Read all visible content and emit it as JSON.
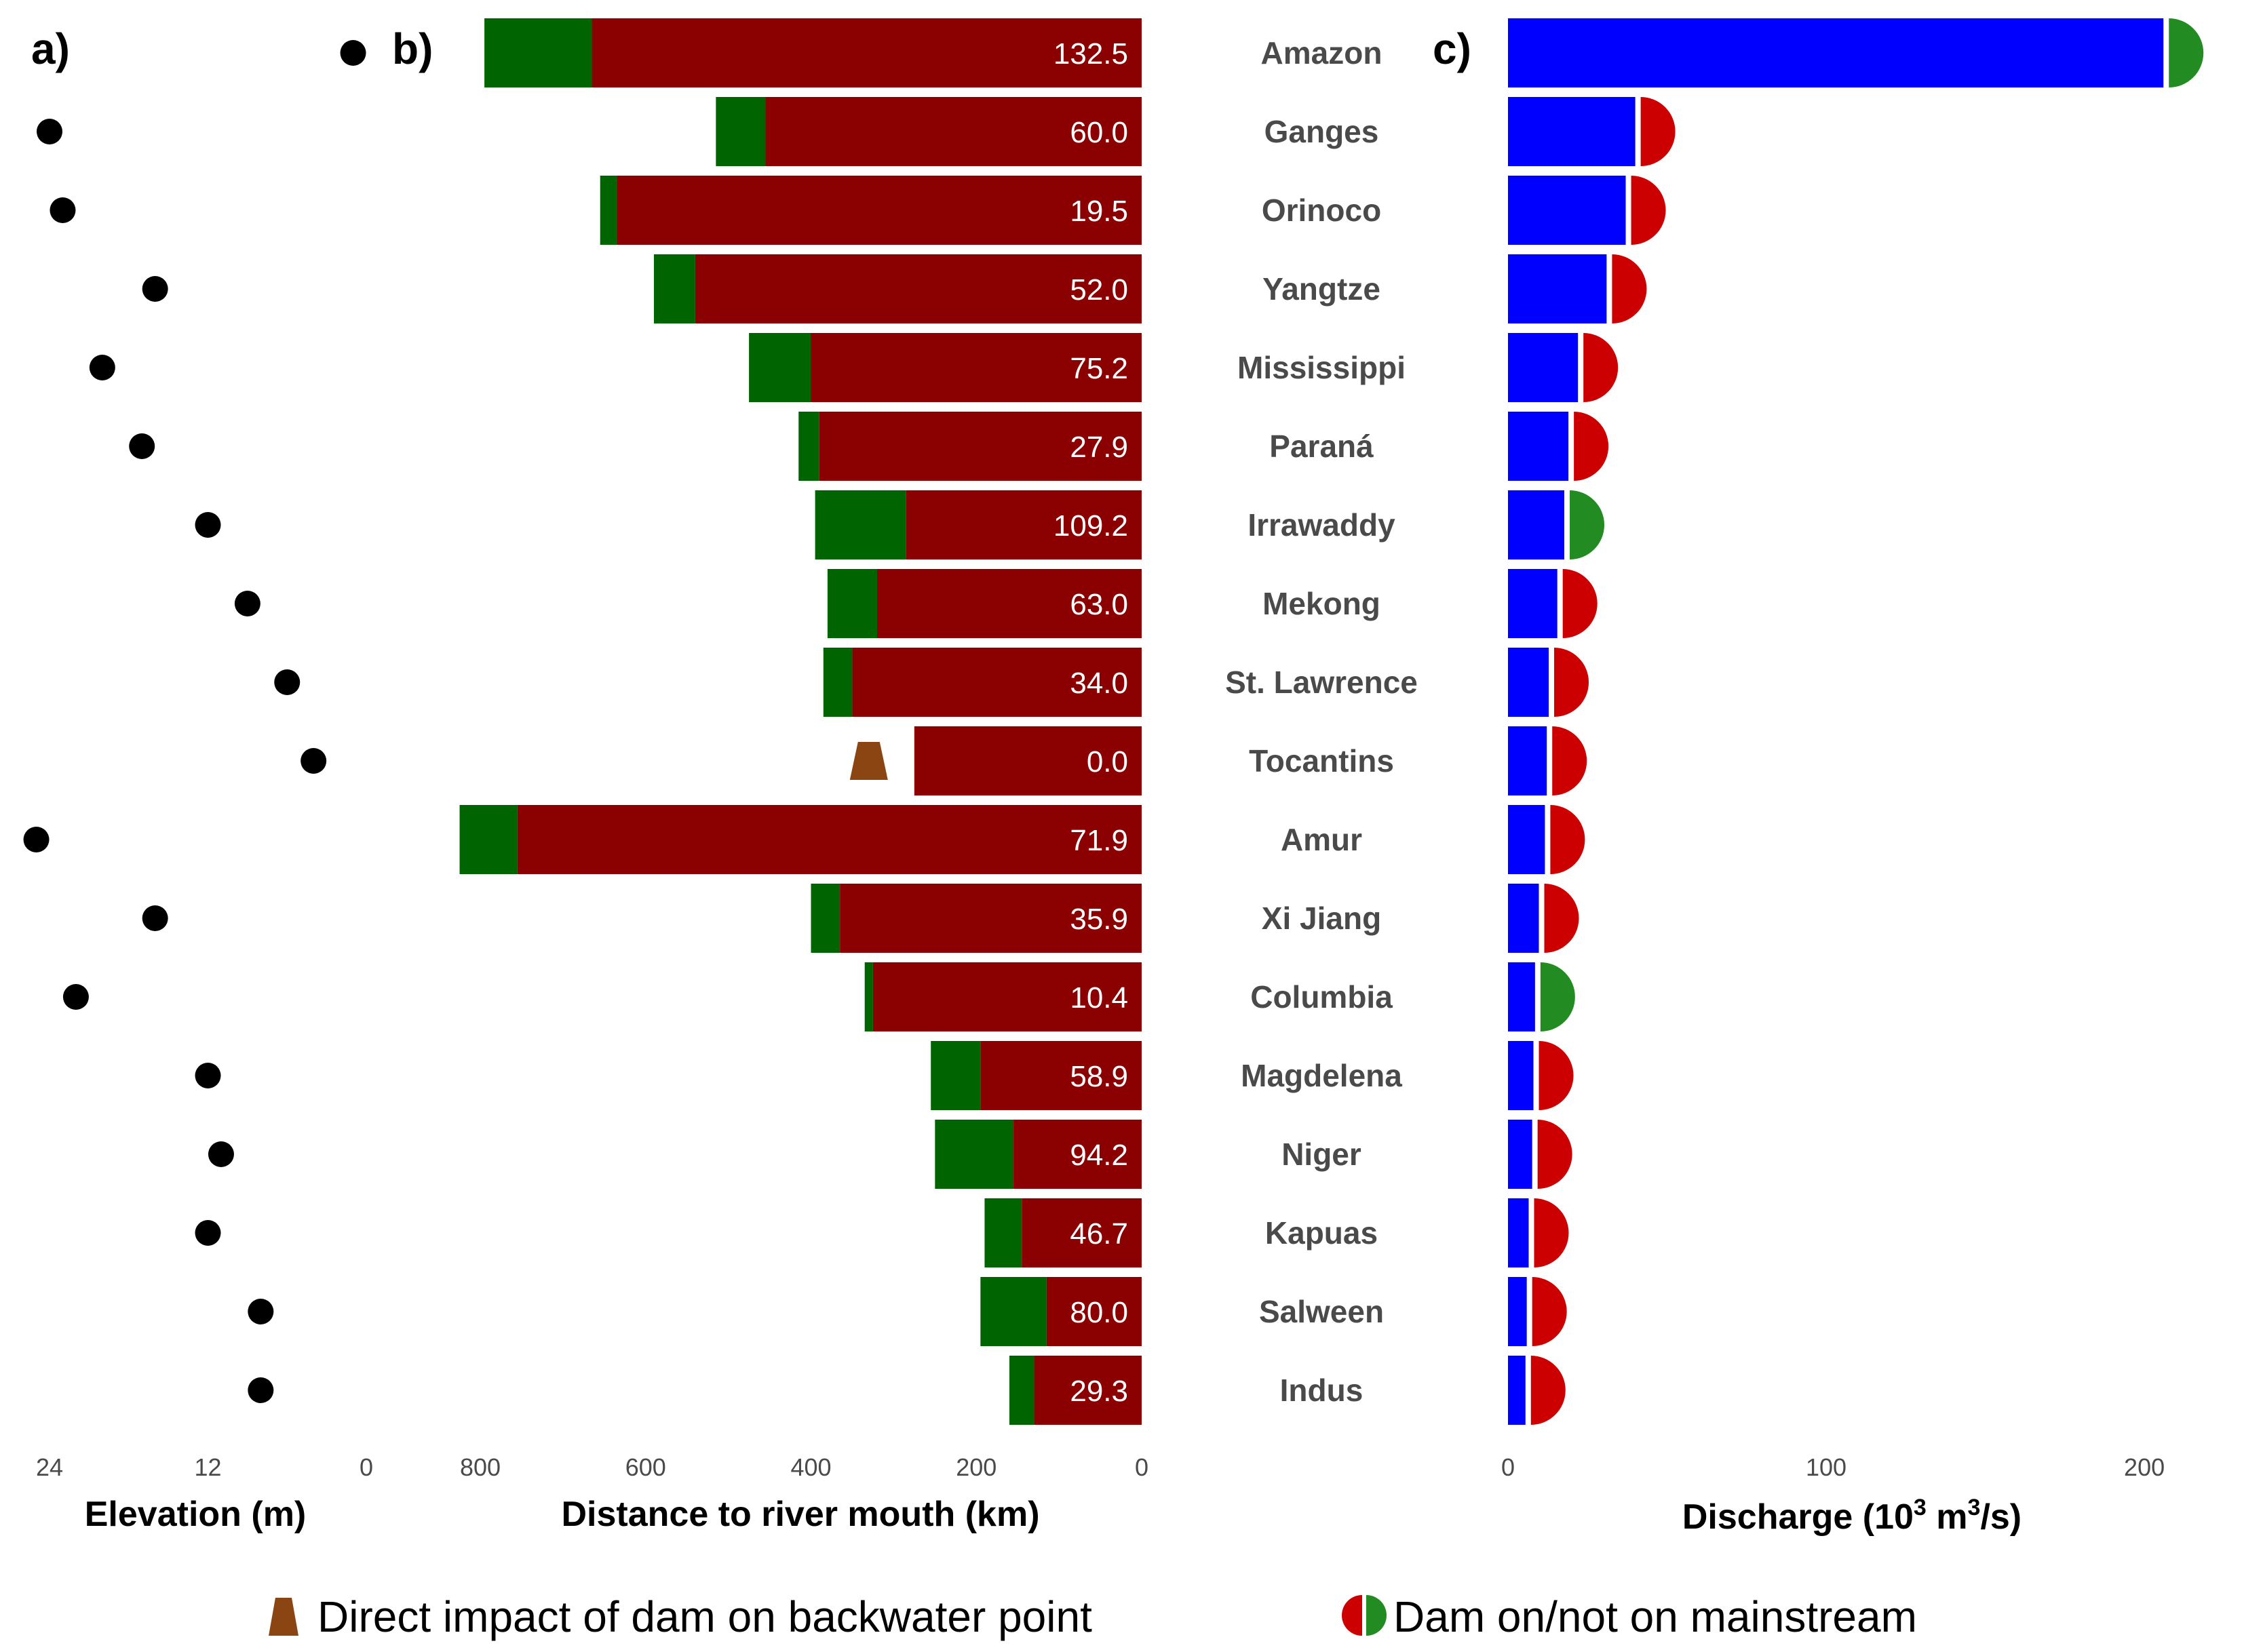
{
  "panels": {
    "a": "a)",
    "b": "b)",
    "c": "c)"
  },
  "colors": {
    "dam_red": "#8b0000",
    "green_bar": "#006400",
    "blue_bar": "#0000ff",
    "semi_red": "#cc0000",
    "semi_green": "#228b22",
    "dam_icon": "#8b4513",
    "dot": "#000000"
  },
  "chart_data": {
    "type": "bar",
    "title": "",
    "categories": [
      "Amazon",
      "Ganges",
      "Orinoco",
      "Yangtze",
      "Mississippi",
      "Paraná",
      "Irrawaddy",
      "Mekong",
      "St. Lawrence",
      "Tocantins",
      "Amur",
      "Xi Jiang",
      "Columbia",
      "Magdelena",
      "Niger",
      "Kapuas",
      "Salween",
      "Indus"
    ],
    "elevation": {
      "xlabel": "Elevation (m)",
      "xlim": [
        24,
        0
      ],
      "ticks": [
        "24",
        "12",
        "0"
      ],
      "values": [
        1,
        24,
        23,
        16,
        20,
        17,
        12,
        9,
        6,
        4,
        25,
        16,
        22,
        12,
        11,
        12,
        8,
        8
      ]
    },
    "distance": {
      "xlabel": "Distance to river mouth (km)",
      "xlim": [
        800,
        0
      ],
      "ticks": [
        "800",
        "600",
        "400",
        "200",
        "0"
      ],
      "dam_distance_km": [
        665,
        455,
        635,
        540,
        400,
        390,
        285,
        320,
        350,
        275,
        755,
        365,
        325,
        195,
        155,
        145,
        115,
        130
      ],
      "total_distance_km": [
        795,
        515,
        655,
        590,
        475,
        415,
        395,
        380,
        385,
        275,
        825,
        400,
        335,
        255,
        250,
        190,
        195,
        160
      ],
      "labels": [
        "132.5",
        "60.0",
        "19.5",
        "52.0",
        "75.2",
        "27.9",
        "109.2",
        "63.0",
        "34.0",
        "0.0",
        "71.9",
        "35.9",
        "10.4",
        "58.9",
        "94.2",
        "46.7",
        "80.0",
        "29.3"
      ],
      "direct_impact": [
        false,
        false,
        false,
        false,
        false,
        false,
        false,
        false,
        false,
        true,
        false,
        false,
        false,
        false,
        false,
        false,
        false,
        false
      ],
      "direct_impact_position_km": 330
    },
    "discharge": {
      "xlabel": "Discharge (10",
      "xlabel_sup1": "3",
      "xlabel_mid": " m",
      "xlabel_sup2": "3",
      "xlabel_end": "/s)",
      "xlim": [
        0,
        210
      ],
      "ticks": [
        "0",
        "100",
        "200"
      ],
      "values": [
        206,
        40,
        37,
        31,
        22,
        19,
        17.7,
        15.5,
        12.8,
        12.2,
        11.6,
        9.7,
        8.5,
        8,
        7.6,
        6.5,
        5.9,
        5.5
      ],
      "dam_on_mainstream": [
        false,
        true,
        true,
        true,
        true,
        true,
        false,
        true,
        true,
        true,
        true,
        true,
        false,
        true,
        true,
        true,
        true,
        true
      ]
    }
  },
  "legend": {
    "direct_impact": "Direct impact of dam on backwater point",
    "dam_mainstream": "Dam on/not on mainstream"
  }
}
